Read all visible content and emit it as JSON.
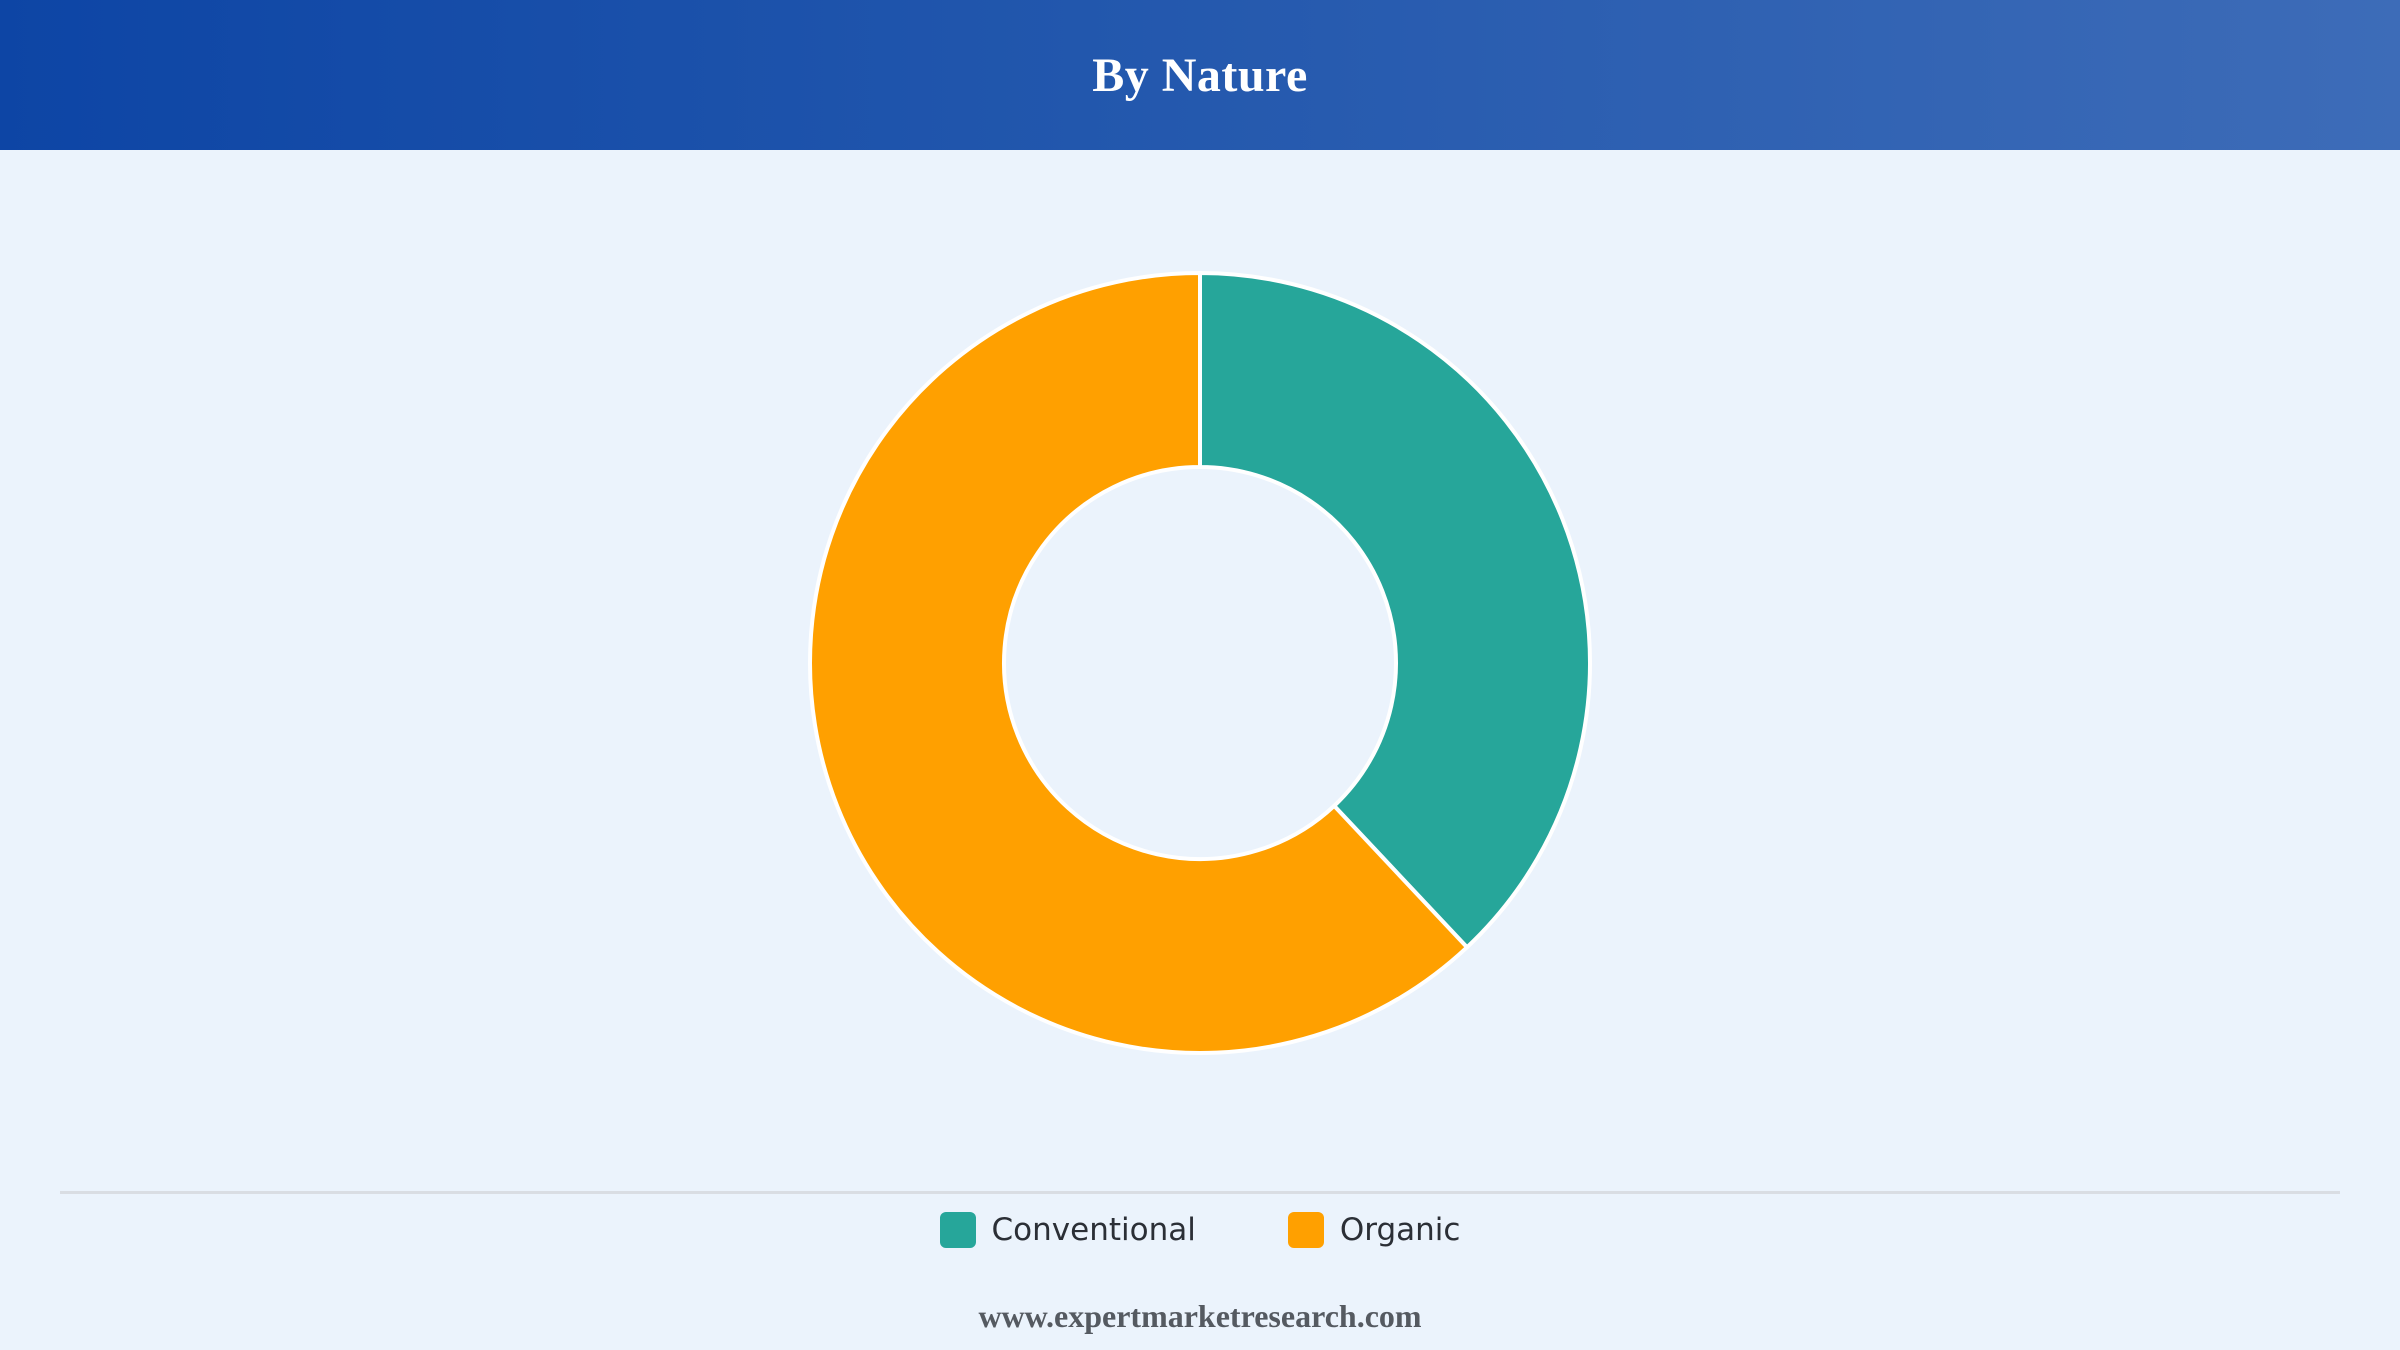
{
  "header": {
    "title": "By Nature"
  },
  "chart_data": {
    "type": "pie",
    "variant": "donut",
    "categories": [
      "Conventional",
      "Organic"
    ],
    "values": [
      38,
      62
    ],
    "colors": [
      "#26a69a",
      "#ffa000"
    ],
    "legend": "bottom",
    "title": "By Nature"
  },
  "legend": {
    "items": [
      {
        "label": "Conventional",
        "color": "#26a69a"
      },
      {
        "label": "Organic",
        "color": "#ffa000"
      }
    ]
  },
  "footer": {
    "source": "www.expertmarketresearch.com"
  },
  "colors": {
    "header_start": "#0d45a5",
    "header_end": "#3d6cb8",
    "background": "#ebf3fc"
  }
}
